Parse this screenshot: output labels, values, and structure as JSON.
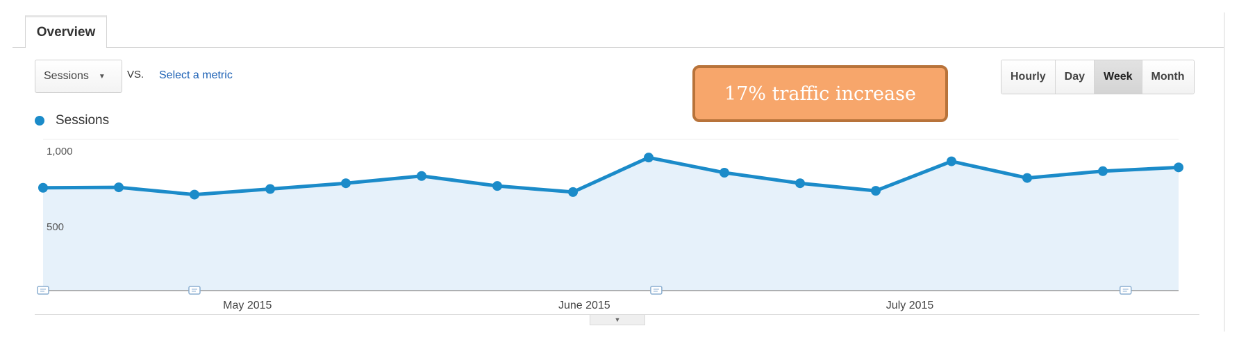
{
  "tabs": {
    "overview": "Overview"
  },
  "controls": {
    "metric_selected": "Sessions",
    "vs_label": "VS.",
    "select_metric_link": "Select a metric",
    "granularity": [
      {
        "label": "Hourly",
        "active": false
      },
      {
        "label": "Day",
        "active": false
      },
      {
        "label": "Week",
        "active": true
      },
      {
        "label": "Month",
        "active": false
      }
    ]
  },
  "annotation_text": "17% traffic increase",
  "colors": {
    "series": "#1b8bc9",
    "area_fill": "#e6f1fa",
    "annotation_bg": "#f7a66b",
    "annotation_border": "#b8733a",
    "link": "#1a5fb4"
  },
  "icons": {
    "dropdown": "caret-down-icon",
    "chart_annotation": "note-marker-icon",
    "collapse": "caret-down-icon"
  },
  "chart_data": {
    "type": "area",
    "series": [
      {
        "name": "Sessions",
        "values": [
          680,
          683,
          635,
          672,
          710,
          758,
          692,
          652,
          880,
          780,
          710,
          660,
          855,
          745,
          790,
          815
        ]
      }
    ],
    "ylim": [
      0,
      1000
    ],
    "y_ticks": [
      "1,000",
      "500"
    ],
    "x_month_labels": [
      {
        "label": "May 2015",
        "at_index": 2.7
      },
      {
        "label": "June 2015",
        "at_index": 7.15
      },
      {
        "label": "July 2015",
        "at_index": 11.45
      }
    ],
    "annotation_marker_indices": [
      0,
      2,
      8.1,
      14.3
    ],
    "grid": true,
    "legend": "top-left"
  }
}
